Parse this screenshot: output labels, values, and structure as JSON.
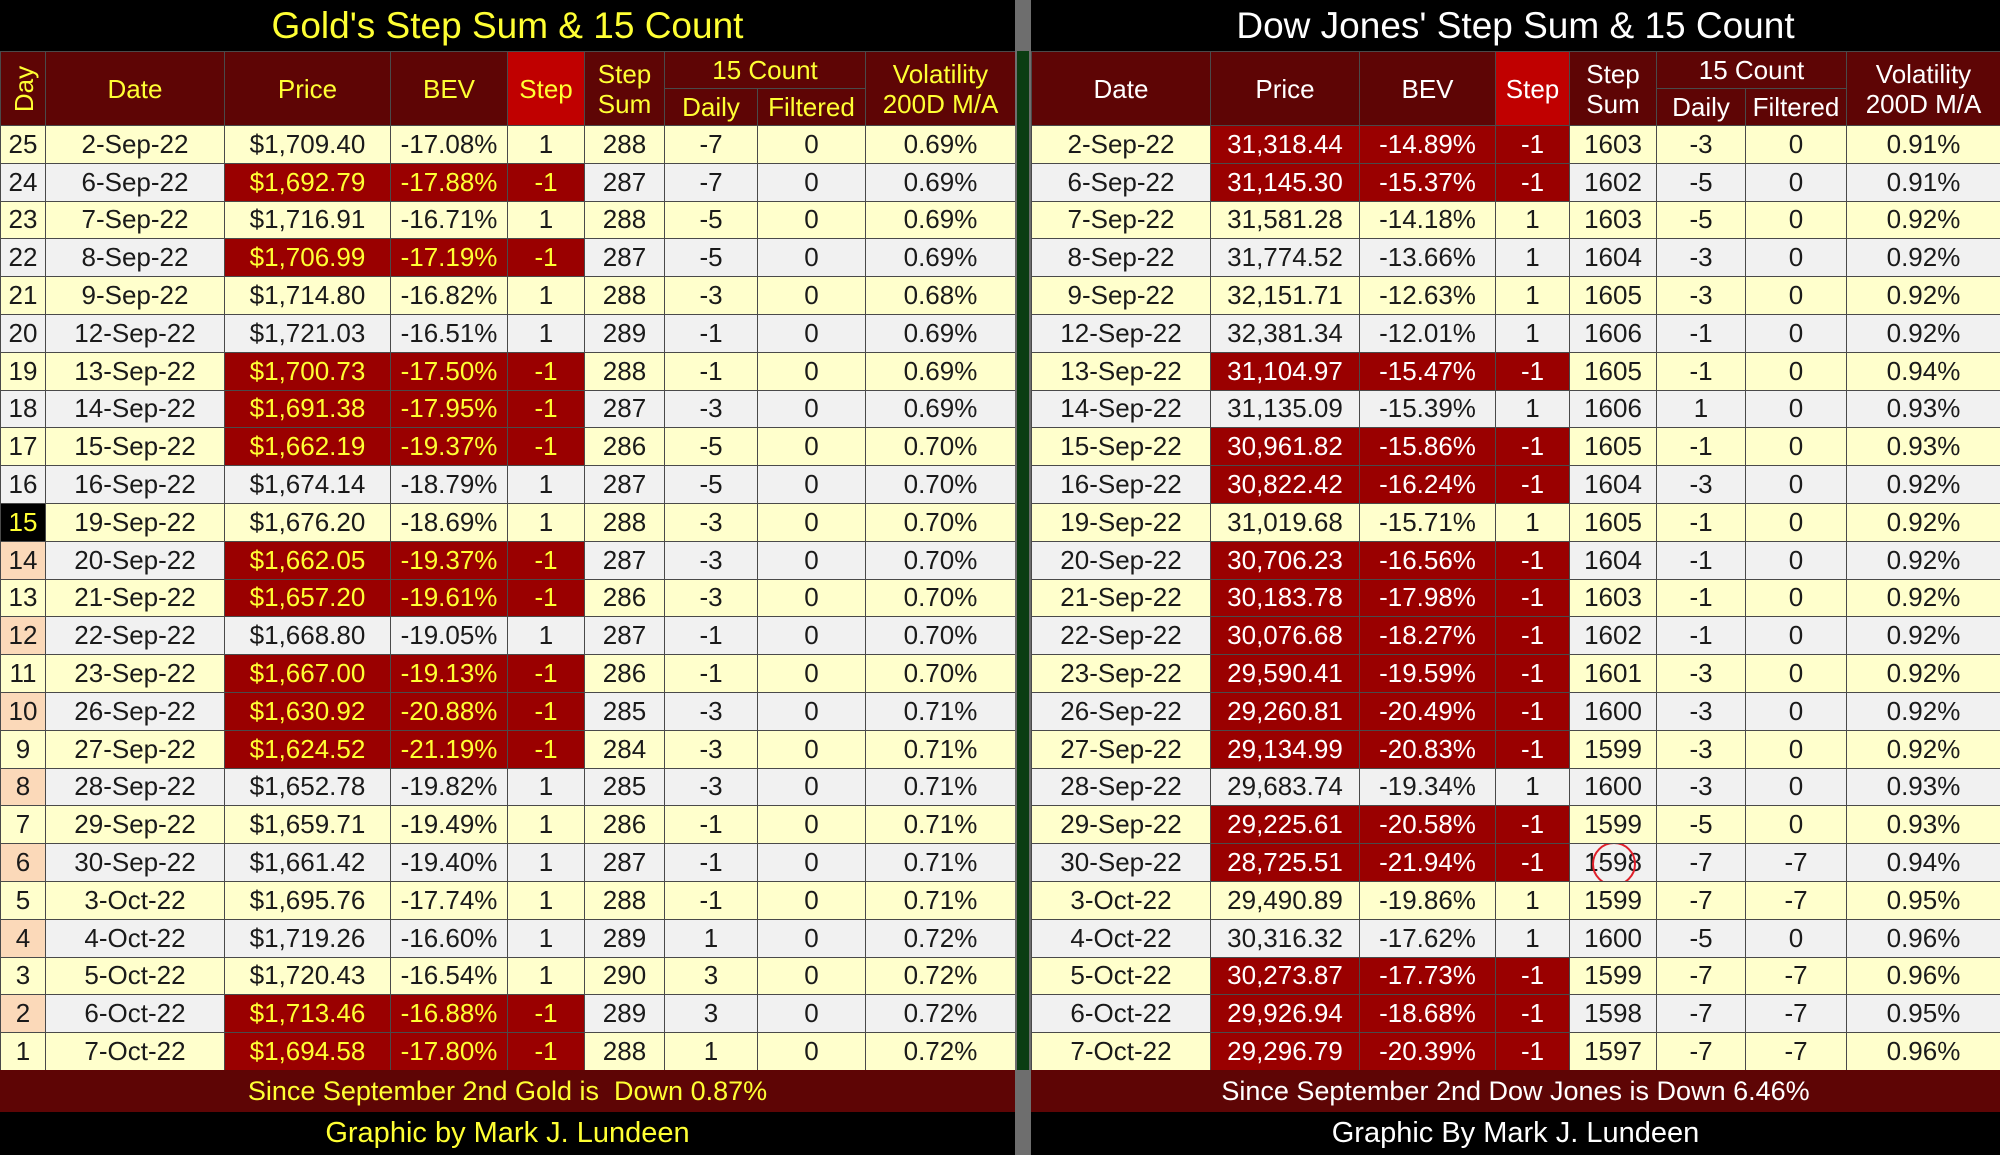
{
  "gold": {
    "title": "Gold's Step Sum & 15 Count",
    "headers": {
      "day": "Day",
      "date": "Date",
      "price": "Price",
      "bev": "BEV",
      "step": "Step",
      "step_sum": [
        "Step",
        "Sum"
      ],
      "count": "15 Count",
      "daily": "Daily",
      "filtered": "Filtered",
      "volatility": [
        "Volatility",
        "200D M/A"
      ]
    },
    "rows": [
      [
        "25",
        "2-Sep-22",
        "$1,709.40",
        "-17.08%",
        "1",
        "288",
        "-7",
        "0",
        "0.69%"
      ],
      [
        "24",
        "6-Sep-22",
        "$1,692.79",
        "-17.88%",
        "-1",
        "287",
        "-7",
        "0",
        "0.69%"
      ],
      [
        "23",
        "7-Sep-22",
        "$1,716.91",
        "-16.71%",
        "1",
        "288",
        "-5",
        "0",
        "0.69%"
      ],
      [
        "22",
        "8-Sep-22",
        "$1,706.99",
        "-17.19%",
        "-1",
        "287",
        "-5",
        "0",
        "0.69%"
      ],
      [
        "21",
        "9-Sep-22",
        "$1,714.80",
        "-16.82%",
        "1",
        "288",
        "-3",
        "0",
        "0.68%"
      ],
      [
        "20",
        "12-Sep-22",
        "$1,721.03",
        "-16.51%",
        "1",
        "289",
        "-1",
        "0",
        "0.69%"
      ],
      [
        "19",
        "13-Sep-22",
        "$1,700.73",
        "-17.50%",
        "-1",
        "288",
        "-1",
        "0",
        "0.69%"
      ],
      [
        "18",
        "14-Sep-22",
        "$1,691.38",
        "-17.95%",
        "-1",
        "287",
        "-3",
        "0",
        "0.69%"
      ],
      [
        "17",
        "15-Sep-22",
        "$1,662.19",
        "-19.37%",
        "-1",
        "286",
        "-5",
        "0",
        "0.70%"
      ],
      [
        "16",
        "16-Sep-22",
        "$1,674.14",
        "-18.79%",
        "1",
        "287",
        "-5",
        "0",
        "0.70%"
      ],
      [
        "15",
        "19-Sep-22",
        "$1,676.20",
        "-18.69%",
        "1",
        "288",
        "-3",
        "0",
        "0.70%"
      ],
      [
        "14",
        "20-Sep-22",
        "$1,662.05",
        "-19.37%",
        "-1",
        "287",
        "-3",
        "0",
        "0.70%"
      ],
      [
        "13",
        "21-Sep-22",
        "$1,657.20",
        "-19.61%",
        "-1",
        "286",
        "-3",
        "0",
        "0.70%"
      ],
      [
        "12",
        "22-Sep-22",
        "$1,668.80",
        "-19.05%",
        "1",
        "287",
        "-1",
        "0",
        "0.70%"
      ],
      [
        "11",
        "23-Sep-22",
        "$1,667.00",
        "-19.13%",
        "-1",
        "286",
        "-1",
        "0",
        "0.70%"
      ],
      [
        "10",
        "26-Sep-22",
        "$1,630.92",
        "-20.88%",
        "-1",
        "285",
        "-3",
        "0",
        "0.71%"
      ],
      [
        "9",
        "27-Sep-22",
        "$1,624.52",
        "-21.19%",
        "-1",
        "284",
        "-3",
        "0",
        "0.71%"
      ],
      [
        "8",
        "28-Sep-22",
        "$1,652.78",
        "-19.82%",
        "1",
        "285",
        "-3",
        "0",
        "0.71%"
      ],
      [
        "7",
        "29-Sep-22",
        "$1,659.71",
        "-19.49%",
        "1",
        "286",
        "-1",
        "0",
        "0.71%"
      ],
      [
        "6",
        "30-Sep-22",
        "$1,661.42",
        "-19.40%",
        "1",
        "287",
        "-1",
        "0",
        "0.71%"
      ],
      [
        "5",
        "3-Oct-22",
        "$1,695.76",
        "-17.74%",
        "1",
        "288",
        "-1",
        "0",
        "0.71%"
      ],
      [
        "4",
        "4-Oct-22",
        "$1,719.26",
        "-16.60%",
        "1",
        "289",
        "1",
        "0",
        "0.72%"
      ],
      [
        "3",
        "5-Oct-22",
        "$1,720.43",
        "-16.54%",
        "1",
        "290",
        "3",
        "0",
        "0.72%"
      ],
      [
        "2",
        "6-Oct-22",
        "$1,713.46",
        "-16.88%",
        "-1",
        "289",
        "3",
        "0",
        "0.72%"
      ],
      [
        "1",
        "7-Oct-22",
        "$1,694.58",
        "-17.80%",
        "-1",
        "288",
        "1",
        "0",
        "0.72%"
      ]
    ],
    "footer": "Since September 2nd Gold is  Down 0.87%",
    "credit": "Graphic by Mark J. Lundeen"
  },
  "dow": {
    "title": "Dow Jones' Step Sum & 15 Count",
    "headers": {
      "date": "Date",
      "price": "Price",
      "bev": "BEV",
      "step": "Step",
      "step_sum": [
        "Step",
        "Sum"
      ],
      "count": "15 Count",
      "daily": "Daily",
      "filtered": "Filtered",
      "volatility": [
        "Volatility",
        "200D M/A"
      ]
    },
    "rows": [
      [
        "2-Sep-22",
        "31,318.44",
        "-14.89%",
        "-1",
        "1603",
        "-3",
        "0",
        "0.91%"
      ],
      [
        "6-Sep-22",
        "31,145.30",
        "-15.37%",
        "-1",
        "1602",
        "-5",
        "0",
        "0.91%"
      ],
      [
        "7-Sep-22",
        "31,581.28",
        "-14.18%",
        "1",
        "1603",
        "-5",
        "0",
        "0.92%"
      ],
      [
        "8-Sep-22",
        "31,774.52",
        "-13.66%",
        "1",
        "1604",
        "-3",
        "0",
        "0.92%"
      ],
      [
        "9-Sep-22",
        "32,151.71",
        "-12.63%",
        "1",
        "1605",
        "-3",
        "0",
        "0.92%"
      ],
      [
        "12-Sep-22",
        "32,381.34",
        "-12.01%",
        "1",
        "1606",
        "-1",
        "0",
        "0.92%"
      ],
      [
        "13-Sep-22",
        "31,104.97",
        "-15.47%",
        "-1",
        "1605",
        "-1",
        "0",
        "0.94%"
      ],
      [
        "14-Sep-22",
        "31,135.09",
        "-15.39%",
        "1",
        "1606",
        "1",
        "0",
        "0.93%"
      ],
      [
        "15-Sep-22",
        "30,961.82",
        "-15.86%",
        "-1",
        "1605",
        "-1",
        "0",
        "0.93%"
      ],
      [
        "16-Sep-22",
        "30,822.42",
        "-16.24%",
        "-1",
        "1604",
        "-3",
        "0",
        "0.92%"
      ],
      [
        "19-Sep-22",
        "31,019.68",
        "-15.71%",
        "1",
        "1605",
        "-1",
        "0",
        "0.92%"
      ],
      [
        "20-Sep-22",
        "30,706.23",
        "-16.56%",
        "-1",
        "1604",
        "-1",
        "0",
        "0.92%"
      ],
      [
        "21-Sep-22",
        "30,183.78",
        "-17.98%",
        "-1",
        "1603",
        "-1",
        "0",
        "0.92%"
      ],
      [
        "22-Sep-22",
        "30,076.68",
        "-18.27%",
        "-1",
        "1602",
        "-1",
        "0",
        "0.92%"
      ],
      [
        "23-Sep-22",
        "29,590.41",
        "-19.59%",
        "-1",
        "1601",
        "-3",
        "0",
        "0.92%"
      ],
      [
        "26-Sep-22",
        "29,260.81",
        "-20.49%",
        "-1",
        "1600",
        "-3",
        "0",
        "0.92%"
      ],
      [
        "27-Sep-22",
        "29,134.99",
        "-20.83%",
        "-1",
        "1599",
        "-3",
        "0",
        "0.92%"
      ],
      [
        "28-Sep-22",
        "29,683.74",
        "-19.34%",
        "1",
        "1600",
        "-3",
        "0",
        "0.93%"
      ],
      [
        "29-Sep-22",
        "29,225.61",
        "-20.58%",
        "-1",
        "1599",
        "-5",
        "0",
        "0.93%"
      ],
      [
        "30-Sep-22",
        "28,725.51",
        "-21.94%",
        "-1",
        "1598",
        "-7",
        "-7",
        "0.94%"
      ],
      [
        "3-Oct-22",
        "29,490.89",
        "-19.86%",
        "1",
        "1599",
        "-7",
        "-7",
        "0.95%"
      ],
      [
        "4-Oct-22",
        "30,316.32",
        "-17.62%",
        "1",
        "1600",
        "-5",
        "0",
        "0.96%"
      ],
      [
        "5-Oct-22",
        "30,273.87",
        "-17.73%",
        "-1",
        "1599",
        "-7",
        "-7",
        "0.96%"
      ],
      [
        "6-Oct-22",
        "29,926.94",
        "-18.68%",
        "-1",
        "1598",
        "-7",
        "-7",
        "0.95%"
      ],
      [
        "7-Oct-22",
        "29,296.79",
        "-20.39%",
        "-1",
        "1597",
        "-7",
        "-7",
        "0.96%"
      ]
    ],
    "footer": "Since September 2nd Dow Jones is Down 6.46%",
    "credit": "Graphic By Mark J. Lundeen"
  }
}
